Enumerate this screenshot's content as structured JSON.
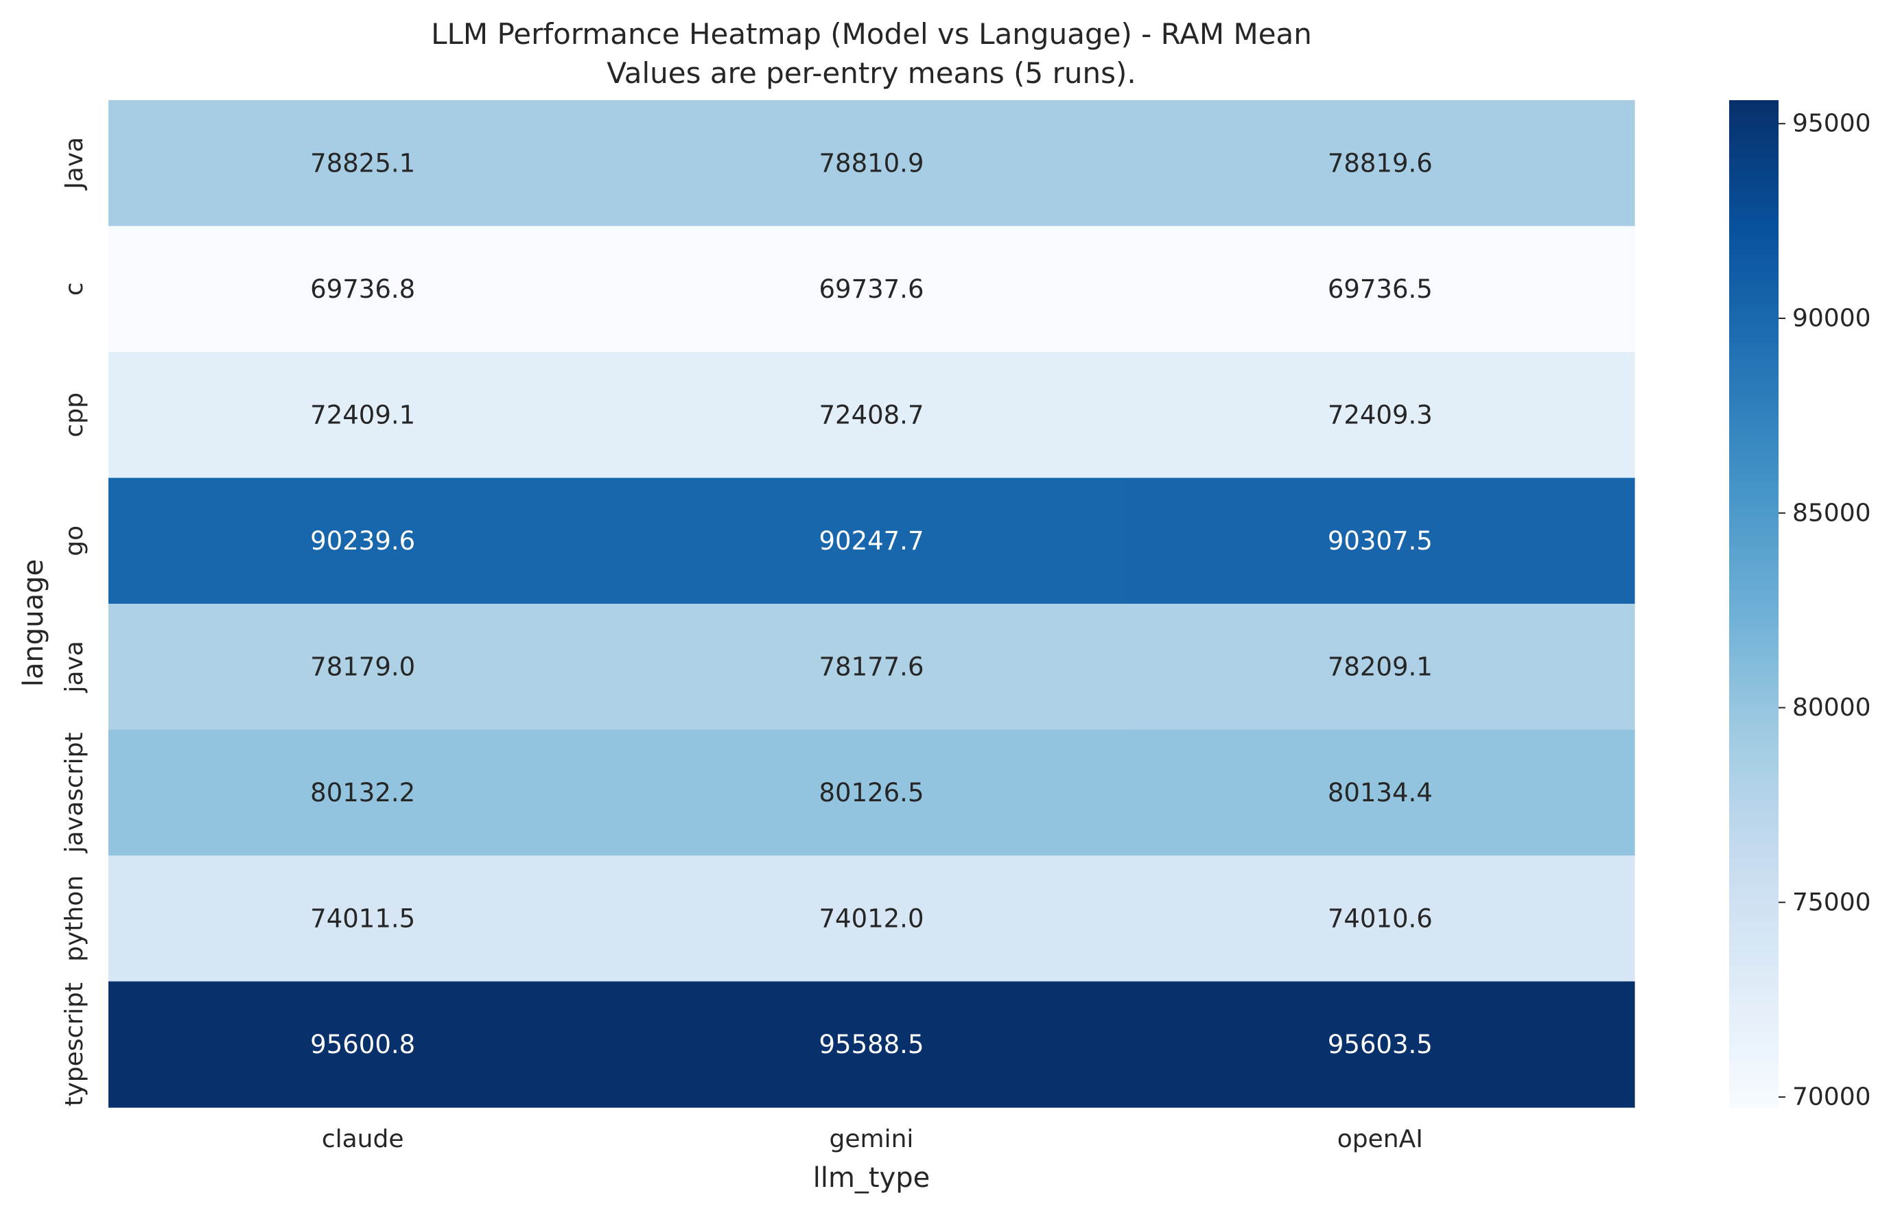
{
  "chart_data": {
    "type": "heatmap",
    "title": "LLM Performance Heatmap (Model vs Language) - RAM Mean",
    "subtitle": "Values are per-entry means (5 runs).",
    "xlabel": "llm_type",
    "ylabel": "language",
    "x_categories": [
      "claude",
      "gemini",
      "openAI"
    ],
    "y_categories": [
      "Java",
      "c",
      "cpp",
      "go",
      "java",
      "javascript",
      "python",
      "typescript"
    ],
    "values": [
      [
        78825.1,
        78810.9,
        78819.6
      ],
      [
        69736.8,
        69737.6,
        69736.5
      ],
      [
        72409.1,
        72408.7,
        72409.3
      ],
      [
        90239.6,
        90247.7,
        90307.5
      ],
      [
        78179.0,
        78177.6,
        78209.1
      ],
      [
        80132.2,
        80126.5,
        80134.4
      ],
      [
        74011.5,
        74012.0,
        74010.6
      ],
      [
        95600.8,
        95588.5,
        95603.5
      ]
    ],
    "value_labels": [
      [
        "78825.1",
        "78810.9",
        "78819.6"
      ],
      [
        "69736.8",
        "69737.6",
        "69736.5"
      ],
      [
        "72409.1",
        "72408.7",
        "72409.3"
      ],
      [
        "90239.6",
        "90247.7",
        "90307.5"
      ],
      [
        "78179.0",
        "78177.6",
        "78209.1"
      ],
      [
        "80132.2",
        "80126.5",
        "80134.4"
      ],
      [
        "74011.5",
        "74012.0",
        "74010.6"
      ],
      [
        "95600.8",
        "95588.5",
        "95603.5"
      ]
    ],
    "colorscale": "Blues",
    "colorbar": {
      "range": [
        69736.5,
        95603.5
      ],
      "ticks": [
        70000,
        75000,
        80000,
        85000,
        90000,
        95000
      ],
      "tick_labels": [
        "70000",
        "75000",
        "80000",
        "85000",
        "90000",
        "95000"
      ]
    },
    "grid": false
  }
}
